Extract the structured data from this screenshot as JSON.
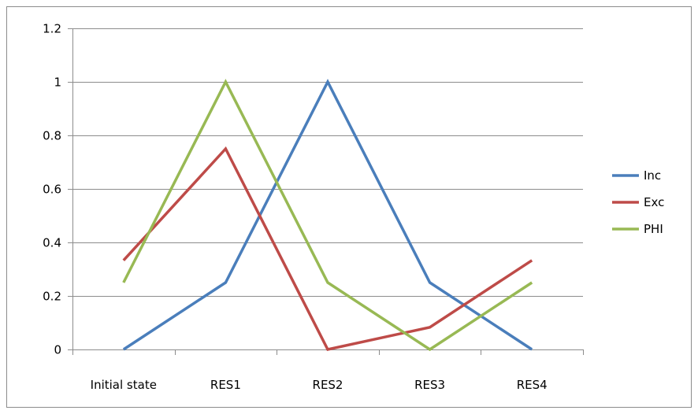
{
  "chart_data": {
    "type": "line",
    "categories": [
      "Initial state",
      "RES1",
      "RES2",
      "RES3",
      "RES4"
    ],
    "series": [
      {
        "name": "Inc",
        "color": "#4a7ebb",
        "values": [
          0,
          0.25,
          1,
          0.25,
          0
        ]
      },
      {
        "name": "Exc",
        "color": "#be4b48",
        "values": [
          0.333,
          0.75,
          0,
          0.083,
          0.333
        ]
      },
      {
        "name": "PHI",
        "color": "#98b954",
        "values": [
          0.25,
          1,
          0.25,
          0,
          0.25
        ]
      }
    ],
    "yticks": [
      "0",
      "0.2",
      "0.4",
      "0.6",
      "0.8",
      "1",
      "1.2"
    ],
    "ylim": [
      0,
      1.2
    ],
    "grid": true,
    "legend": "right",
    "title": "",
    "xlabel": "",
    "ylabel": ""
  }
}
